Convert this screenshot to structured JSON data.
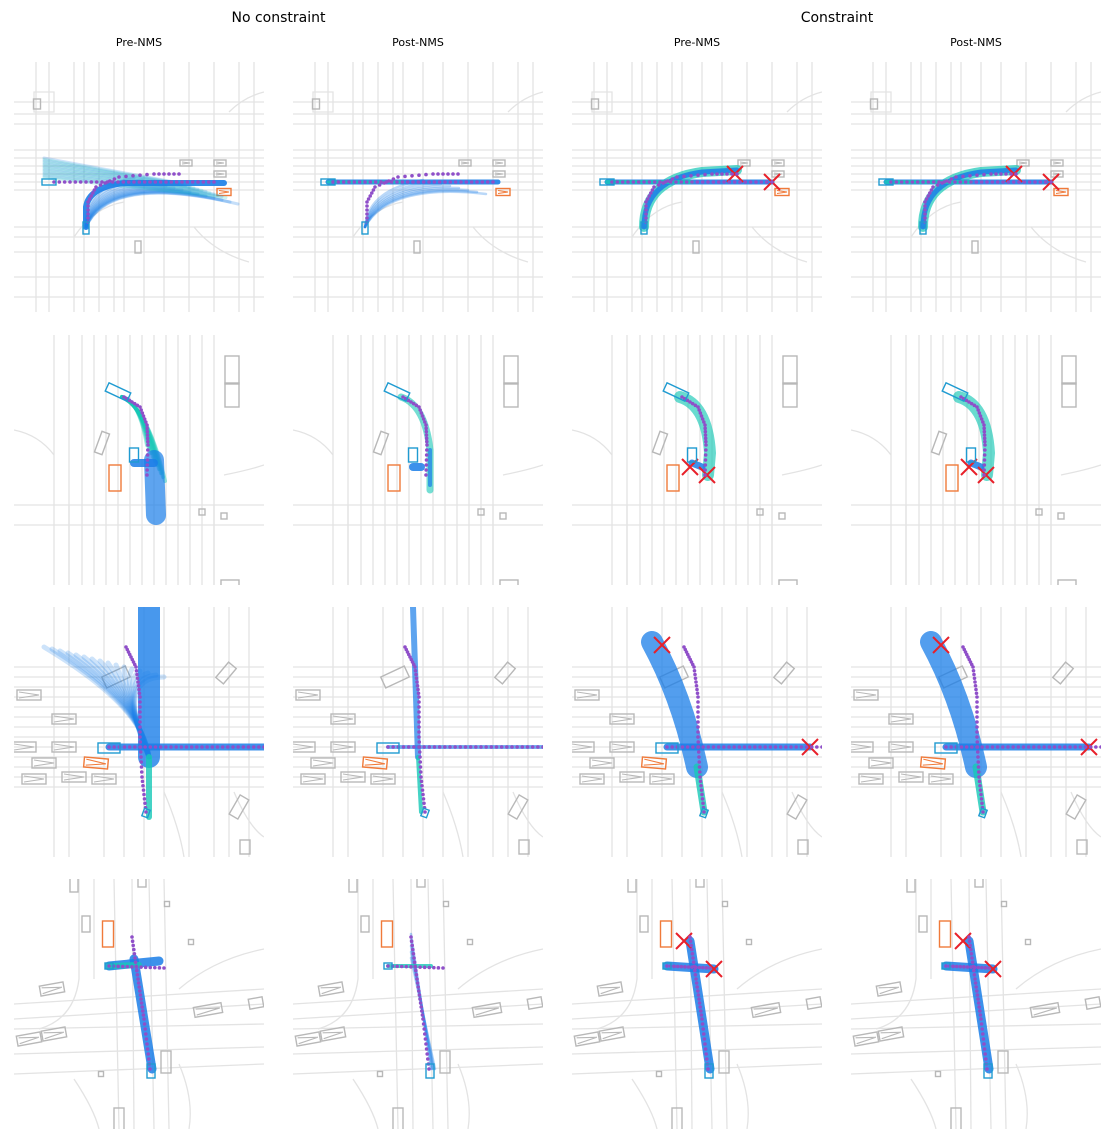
{
  "groups": [
    {
      "label": "No constraint"
    },
    {
      "label": "Constraint"
    }
  ],
  "columns": [
    {
      "label": "Pre-NMS"
    },
    {
      "label": "Post-NMS"
    },
    {
      "label": "Pre-NMS"
    },
    {
      "label": "Post-NMS"
    }
  ],
  "colors": {
    "map_line": "#e3e3e3",
    "agent_box": "#b8b8b8",
    "ego_box": "#1f9bd1",
    "target_box": "#f07a3a",
    "trajectory_blue": "#1a7ee8",
    "trajectory_teal": "#17c8b6",
    "ground_truth": "#8f4fc9",
    "collision_marker": "#e8202a"
  },
  "marker_legend": {
    "collision_marker": "cross-icon"
  }
}
